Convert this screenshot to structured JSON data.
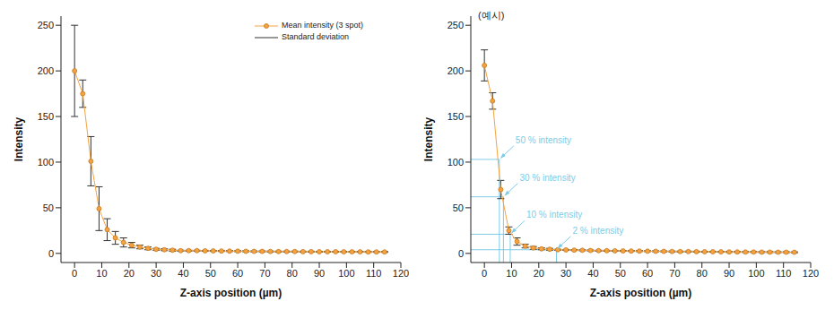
{
  "chart_data": [
    {
      "type": "line",
      "legend": "top right",
      "x_label": "Z-axis position (µm)",
      "y_label": "Intensity",
      "xlim": [
        -5,
        120
      ],
      "xticks": [
        0,
        10,
        20,
        30,
        40,
        50,
        60,
        70,
        80,
        90,
        100,
        110,
        120
      ],
      "ylim": [
        -10,
        260
      ],
      "yticks": [
        0,
        50,
        100,
        150,
        200,
        250
      ],
      "x": [
        0,
        3,
        6,
        9,
        12,
        15,
        18,
        21,
        24,
        27,
        30,
        33,
        36,
        39,
        42,
        45,
        48,
        51,
        54,
        57,
        60,
        63,
        66,
        69,
        72,
        75,
        78,
        81,
        84,
        87,
        90,
        93,
        96,
        99,
        102,
        105,
        108,
        111,
        114
      ],
      "series": [
        {
          "name": "Mean intensity (3 spot)",
          "color": "#f5a342",
          "marker": "circle",
          "values": [
            200,
            175,
            101,
            49,
            26,
            17,
            12,
            9,
            7,
            5.5,
            4.5,
            4,
            3.5,
            3,
            3,
            3,
            2.8,
            2.7,
            2.6,
            2.5,
            2.4,
            2.3,
            2.2,
            2.2,
            2.1,
            2,
            2,
            2,
            1.9,
            1.9,
            1.8,
            1.8,
            1.8,
            1.7,
            1.7,
            1.7,
            1.6,
            1.6,
            1.6
          ],
          "errors": [
            50,
            15,
            27,
            24,
            12,
            7,
            5,
            3,
            2,
            1.5,
            1,
            1,
            1,
            0.5,
            0.5,
            0.5,
            0.5,
            0.5,
            0.5,
            0.5,
            0.5,
            0.5,
            0.5,
            0.5,
            0.5,
            0.5,
            0.5,
            0.5,
            0.5,
            0.5,
            0.5,
            0.5,
            0.5,
            0.5,
            0.5,
            0.5,
            0.5,
            0.5,
            0.5
          ],
          "error_name": "Standard deviation",
          "error_color": "#333333"
        }
      ]
    },
    {
      "type": "line",
      "title": "(예시)",
      "x_label": "Z-axis position (µm)",
      "y_label": "Intensity",
      "xlim": [
        -5,
        120
      ],
      "xticks": [
        0,
        10,
        20,
        30,
        40,
        50,
        60,
        70,
        80,
        90,
        100,
        110,
        120
      ],
      "ylim": [
        -10,
        260
      ],
      "yticks": [
        0,
        50,
        100,
        150,
        200,
        250
      ],
      "x": [
        0,
        3,
        6,
        9,
        12,
        15,
        18,
        21,
        24,
        27,
        30,
        33,
        36,
        39,
        42,
        45,
        48,
        51,
        54,
        57,
        60,
        63,
        66,
        69,
        72,
        75,
        78,
        81,
        84,
        87,
        90,
        93,
        96,
        99,
        102,
        105,
        108,
        111,
        114
      ],
      "series": [
        {
          "name": "Mean intensity",
          "color": "#f5a342",
          "marker": "circle",
          "values": [
            206,
            167,
            70,
            25,
            13,
            8,
            6,
            5,
            4.5,
            4,
            3.8,
            3.6,
            3.4,
            3.2,
            3,
            2.9,
            2.8,
            2.7,
            2.6,
            2.5,
            2.4,
            2.3,
            2.2,
            2.1,
            2,
            2,
            1.9,
            1.8,
            1.8,
            1.7,
            1.6,
            1.6,
            1.5,
            1.5,
            1.4,
            1.4,
            1.3,
            1.3,
            1.2
          ],
          "errors": [
            17,
            9,
            10,
            4,
            4,
            2,
            1.5,
            1,
            1,
            0.5,
            0.5,
            0.5,
            0.5,
            0.5,
            0.5,
            0.5,
            0.5,
            0.5,
            0.5,
            0.5,
            0.5,
            0.5,
            0.5,
            0.5,
            0.5,
            0.5,
            0.5,
            0.5,
            0.5,
            0.5,
            0.5,
            0.5,
            0.5,
            0.5,
            0.5,
            0.5,
            0.5,
            0.5,
            0.5
          ],
          "error_color": "#333333"
        }
      ],
      "annotations": [
        {
          "label": "50 % intensity",
          "x": 5.5,
          "y": 103
        },
        {
          "label": "30 % intensity",
          "x": 7,
          "y": 62
        },
        {
          "label": "10 % intensity",
          "x": 9.5,
          "y": 21
        },
        {
          "label": "2 % intensity",
          "x": 26.5,
          "y": 4
        }
      ],
      "annotation_color": "#7ecbe6"
    }
  ]
}
